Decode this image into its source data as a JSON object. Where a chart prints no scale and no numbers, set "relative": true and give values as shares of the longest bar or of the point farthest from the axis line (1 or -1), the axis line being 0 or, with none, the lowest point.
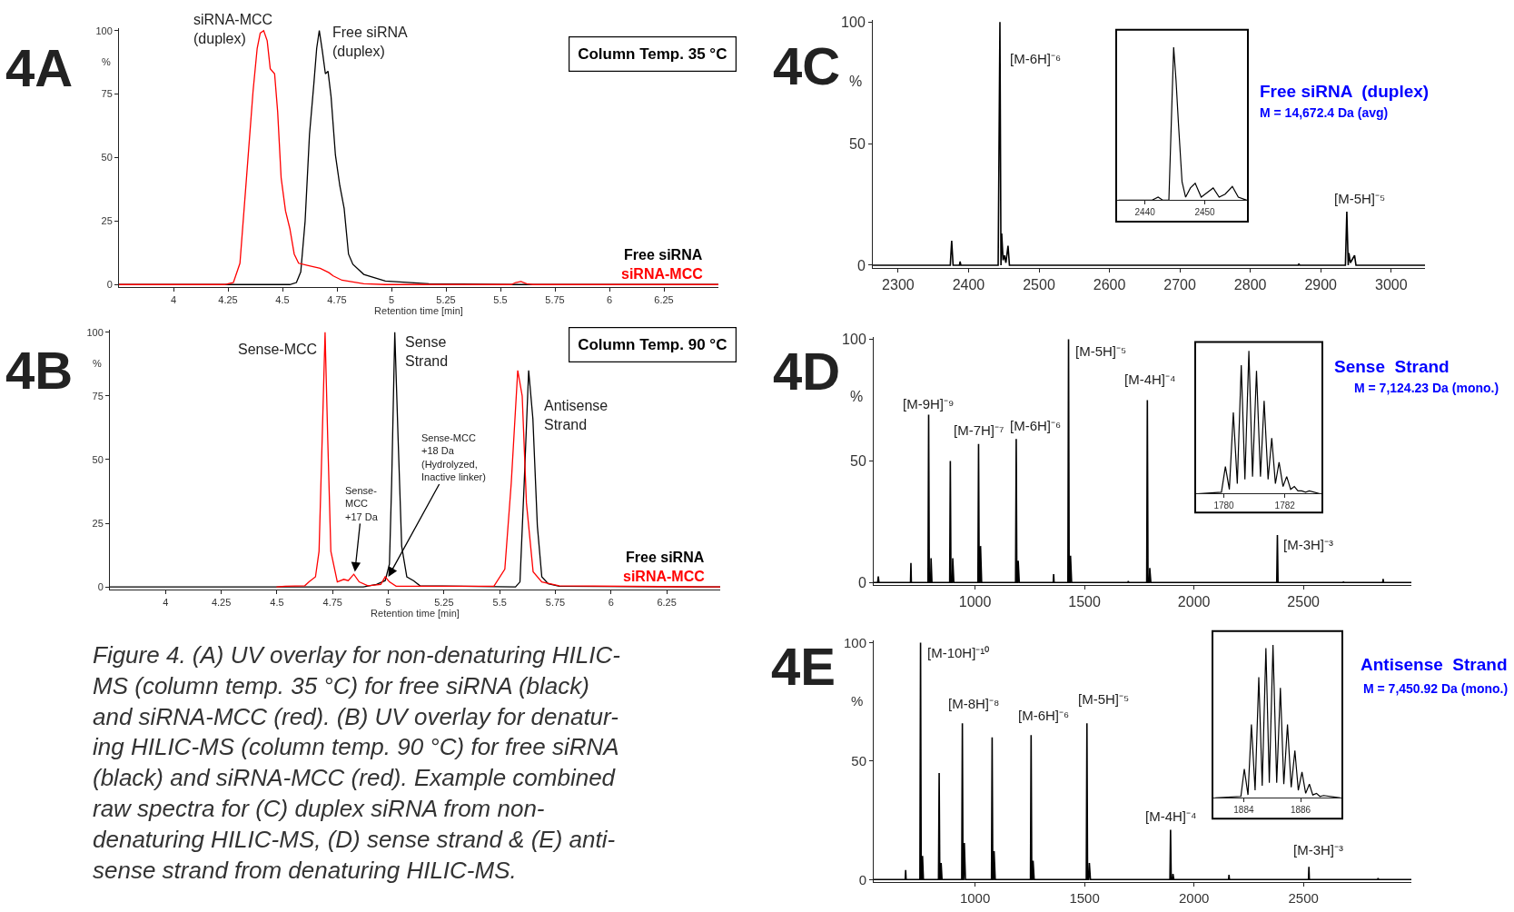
{
  "chart_data": [
    {
      "type": "line",
      "title": "4A",
      "xlabel": "Retention time [min]",
      "ylabel": "%",
      "xlim": [
        3.75,
        6.5
      ],
      "xticks": [
        4,
        4.25,
        4.5,
        4.75,
        5,
        5.25,
        5.5,
        5.75,
        6,
        6.25
      ],
      "ylim": [
        -1,
        101
      ],
      "yticks": [
        0,
        25,
        50,
        75,
        100
      ],
      "legend": "bottom right",
      "series": [
        {
          "name": "Free siRNA",
          "color": "#000000",
          "x": [
            3.75,
            4.534,
            4.564,
            4.584,
            4.604,
            4.624,
            4.644,
            4.657,
            4.669,
            4.683,
            4.697,
            4.709,
            4.723,
            4.743,
            4.763,
            4.783,
            4.803,
            4.823,
            4.873,
            4.972,
            5.171,
            5.55,
            6.5
          ],
          "values": [
            0,
            0,
            0.8,
            5,
            25,
            59,
            79,
            93,
            100,
            92,
            83,
            84,
            74,
            51,
            39,
            30,
            12,
            8,
            4,
            1.4,
            0.3,
            0,
            0
          ]
        },
        {
          "name": "siRNA-MCC",
          "color": "#ff0000",
          "x": [
            3.75,
            4.235,
            4.275,
            4.305,
            4.335,
            4.365,
            4.384,
            4.398,
            4.414,
            4.43,
            4.444,
            4.464,
            4.478,
            4.494,
            4.514,
            4.534,
            4.554,
            4.574,
            4.614,
            4.673,
            4.713,
            4.733,
            4.773,
            4.873,
            4.972,
            5.55,
            5.57,
            5.594,
            5.62,
            5.649,
            6.5
          ],
          "values": [
            0,
            0,
            0.8,
            8.4,
            42,
            76,
            93,
            99,
            100,
            96,
            85,
            83,
            68,
            42,
            29,
            22,
            12,
            8.4,
            7.6,
            6.4,
            4.7,
            3.4,
            1.7,
            0.3,
            0,
            0,
            0.8,
            1.2,
            0.3,
            0,
            0
          ]
        }
      ],
      "annotations": [
        {
          "text": "siRNA-MCC\n(duplex)",
          "x": 4.414,
          "y": 100
        },
        {
          "text": "Free siRNA\n(duplex)",
          "x": 4.669,
          "y": 100
        },
        "Column Temp. 35 °C"
      ]
    },
    {
      "type": "line",
      "title": "4B",
      "xlabel": "Retention time [min]",
      "ylabel": "%",
      "xlim": [
        3.75,
        6.49
      ],
      "xticks": [
        4,
        4.25,
        4.5,
        4.75,
        5,
        5.25,
        5.5,
        5.75,
        6,
        6.25
      ],
      "ylim": [
        -1,
        101
      ],
      "yticks": [
        0,
        25,
        50,
        75,
        100
      ],
      "legend": "bottom right",
      "series": [
        {
          "name": "Free siRNA",
          "color": "#000000",
          "x": [
            3.75,
            4.888,
            4.947,
            4.986,
            5.005,
            5.015,
            5.029,
            5.044,
            5.06,
            5.083,
            5.113,
            5.142,
            5.571,
            5.591,
            5.61,
            5.63,
            5.649,
            5.669,
            5.689,
            5.718,
            5.767,
            6.49
          ],
          "values": [
            0,
            0,
            1,
            2.5,
            9,
            41,
            100,
            58,
            16,
            4,
            2.5,
            0.5,
            0,
            2,
            41,
            85,
            66,
            24,
            4,
            1.3,
            0.3,
            0
          ]
        },
        {
          "name": "siRNA-MCC",
          "color": "#ff0000",
          "x": [
            4.498,
            4.537,
            4.625,
            4.644,
            4.673,
            4.689,
            4.703,
            4.716,
            4.728,
            4.742,
            4.771,
            4.8,
            4.82,
            4.845,
            4.869,
            4.908,
            4.966,
            4.986,
            5.005,
            5.035,
            5.474,
            5.523,
            5.552,
            5.581,
            5.601,
            5.62,
            5.65,
            5.689,
            5.767,
            6.49
          ],
          "values": [
            0,
            0.3,
            0.5,
            2,
            4,
            14,
            58,
            100,
            58,
            14,
            2,
            3,
            2.5,
            5,
            2,
            0.5,
            1,
            4,
            2,
            0.3,
            0.3,
            7,
            41,
            85,
            75,
            33,
            6,
            2,
            0.5,
            0
          ]
        }
      ],
      "annotations": [
        {
          "text": "Sense-MCC",
          "x": 4.716,
          "y": 100
        },
        {
          "text": "Sense\nStrand",
          "x": 5.029,
          "y": 100
        },
        {
          "text": "Antisense\nStrand",
          "x": 5.63,
          "y": 85
        },
        {
          "text": "Sense-\nMCC\n+17 Da",
          "x": 4.85,
          "y": 6
        },
        {
          "text": "Sense-MCC\n+18 Da\n(Hydrolyzed,\nInactive linker)",
          "x": 5.0,
          "y": 4
        },
        "Column Temp. 90 °C",
        "Figure 4. (A) UV overlay for non-denaturing HILIC-\nMS (column temp. 35 °C) for free siRNA (black)\nand siRNA-MCC (red). (B) UV overlay for denatur-\ning HILIC-MS (column temp. 90 °C) for free siRNA\n(black) and siRNA-MCC (red). Example combined\nraw spectra for (C) duplex siRNA from non-\ndenaturing HILIC-MS, (D) sense strand & (E) anti-\nsense strand from denaturing HILIC-MS."
      ]
    },
    {
      "type": "line",
      "title": "4C",
      "ylabel": "%",
      "xlim": [
        2264,
        3048
      ],
      "xticks": [
        2300,
        2400,
        2500,
        2600,
        2700,
        2800,
        2900,
        3000
      ],
      "ylim": [
        -1,
        101
      ],
      "yticks": [
        0,
        50,
        100
      ],
      "series": [
        {
          "color": "#000000",
          "x": [
            2264,
            2374,
            2376,
            2378,
            2387,
            2388,
            2389,
            2442,
            2444.5,
            2446,
            2447,
            2449,
            2451,
            2453,
            2456,
            2458,
            2868,
            2869,
            2870,
            2935,
            2937,
            2939,
            2940,
            2942,
            2948,
            2950,
            3048
          ],
          "values": [
            0,
            0,
            10,
            0,
            0,
            1.5,
            0,
            0,
            100,
            0,
            13,
            2,
            4,
            1,
            8,
            0,
            0,
            0.6,
            0,
            0,
            22,
            0,
            5,
            1,
            4,
            0,
            0
          ]
        }
      ],
      "annotations": [
        {
          "text": "[M-6H]⁻⁶",
          "x": 2444.5,
          "y": 100
        },
        {
          "text": "[M-5H]⁻⁵",
          "x": 2937,
          "y": 22
        },
        "Free siRNA  (duplex)",
        "M = 14,672.4 Da (avg)"
      ]
    },
    {
      "type": "line",
      "relative": true,
      "xlim": [
        2435.2,
        2457.2
      ],
      "xticks": [
        2440,
        2450
      ],
      "series": [
        {
          "color": "#000000",
          "x": [
            2435.6,
            2441.2,
            2442.2,
            2443,
            2444,
            2444.4,
            2444.8,
            2445.2,
            2445.6,
            2446.2,
            2446.8,
            2447.6,
            2448.4,
            2449.4,
            2450.4,
            2451.4,
            2452.4,
            2453.4,
            2454.6,
            2455.6,
            2457
          ],
          "values": [
            0,
            0,
            0.02,
            0,
            0,
            0.5,
            1,
            0.78,
            0.5,
            0.12,
            0.02,
            0.08,
            0.11,
            0.02,
            0.05,
            0.08,
            0.02,
            0.04,
            0.09,
            0.02,
            0
          ]
        }
      ]
    },
    {
      "type": "line",
      "title": "4D",
      "ylabel": "%",
      "xlim": [
        537,
        2993
      ],
      "xticks": [
        1000,
        1500,
        2000,
        2500
      ],
      "ylim": [
        -1,
        101
      ],
      "yticks": [
        0,
        50,
        100
      ],
      "series": [
        {
          "color": "#000000",
          "x": [
            537,
            555,
            558,
            561,
            705,
            707,
            709,
            785,
            788,
            791,
            797,
            799,
            803,
            884,
            887,
            890,
            896,
            898,
            903,
            1013,
            1016,
            1019,
            1023,
            1025,
            1030,
            1185,
            1188,
            1191,
            1195,
            1197,
            1202,
            1357,
            1359,
            1361,
            1424,
            1427,
            1430,
            1434,
            1436,
            1441,
            1698,
            1700,
            1702,
            1784,
            1787,
            1790,
            1796,
            1798,
            1803,
            2378,
            2381,
            2384,
            2681,
            2683,
            2685,
            2862,
            2864,
            2866,
            2993
          ],
          "values": [
            0,
            0,
            2.5,
            0,
            0,
            8,
            0,
            0,
            69,
            0,
            0,
            10,
            0,
            0,
            50,
            0,
            0,
            10,
            0,
            0,
            57,
            0,
            0,
            15,
            0,
            0,
            59,
            0,
            0,
            9,
            0,
            0,
            3.5,
            0,
            0,
            100,
            0,
            0,
            11,
            0,
            0,
            0.6,
            0,
            0,
            75,
            0,
            0,
            6,
            0,
            0,
            19.5,
            0,
            0,
            0.4,
            0,
            0,
            1.5,
            0,
            0
          ]
        }
      ],
      "annotations": [
        {
          "text": "[M-9H]⁻⁹",
          "x": 788,
          "y": 69
        },
        {
          "text": "[M-7H]⁻⁷",
          "x": 1016,
          "y": 57
        },
        {
          "text": "[M-6H]⁻⁶",
          "x": 1188,
          "y": 59
        },
        {
          "text": "[M-5H]⁻⁵",
          "x": 1427,
          "y": 100
        },
        {
          "text": "[M-4H]⁻⁴",
          "x": 1787,
          "y": 75
        },
        {
          "text": "[M-3H]⁻³",
          "x": 2381,
          "y": 19.5
        },
        "Sense  Strand",
        "M = 7,124.23 Da (mono.)"
      ]
    },
    {
      "type": "line",
      "relative": true,
      "xlim": [
        1779.06,
        1783.23
      ],
      "xticks": [
        1780,
        1782
      ],
      "series": [
        {
          "color": "#000000",
          "x": [
            1779.13,
            1779.92,
            1780.05,
            1780.18,
            1780.31,
            1780.44,
            1780.57,
            1780.69,
            1780.82,
            1780.94,
            1781.07,
            1781.2,
            1781.32,
            1781.45,
            1781.57,
            1781.69,
            1781.81,
            1781.94,
            1782.06,
            1782.19,
            1782.31,
            1782.43,
            1782.55,
            1782.68,
            1782.8,
            1783.15
          ],
          "values": [
            0,
            0.01,
            0.19,
            0.03,
            0.57,
            0.07,
            0.9,
            0.1,
            1,
            0.12,
            0.86,
            0.12,
            0.65,
            0.1,
            0.39,
            0.07,
            0.22,
            0.05,
            0.12,
            0.03,
            0.05,
            0.02,
            0.02,
            0.01,
            0.02,
            0
          ]
        }
      ]
    },
    {
      "type": "line",
      "title": "4E",
      "ylabel": "%",
      "xlim": [
        537,
        2993
      ],
      "xticks": [
        1000,
        1500,
        2000,
        2500
      ],
      "ylim": [
        -1,
        101
      ],
      "yticks": [
        0,
        50,
        100
      ],
      "series": [
        {
          "color": "#000000",
          "x": [
            537,
            681,
            683,
            685,
            748,
            751,
            754,
            758,
            760,
            764,
            833,
            836,
            839,
            843,
            845,
            849,
            939,
            942,
            945,
            948,
            951,
            956,
            1075,
            1078,
            1081,
            1085,
            1087,
            1092,
            1253,
            1256,
            1259,
            1263,
            1265,
            1270,
            1508,
            1511,
            1514,
            1519,
            1522,
            1527,
            1890,
            1893,
            1896,
            1902,
            1904,
            1908,
            2158,
            2160,
            2162,
            2523,
            2525,
            2527,
            2839,
            2841,
            2843,
            2993
          ],
          "values": [
            0,
            0,
            4,
            0,
            0,
            100,
            0,
            0,
            10,
            0,
            0,
            45,
            0,
            0,
            7,
            0,
            0,
            66,
            0,
            0,
            15.5,
            0,
            0,
            60,
            0,
            0,
            12,
            0,
            0,
            61,
            0,
            0,
            8,
            0,
            0,
            66,
            0,
            0,
            7,
            0,
            0,
            21,
            0,
            0,
            2.4,
            0,
            0,
            2,
            0,
            0,
            5.4,
            0,
            0,
            0.6,
            0,
            0
          ]
        }
      ],
      "annotations": [
        {
          "text": "[M-10H]⁻¹⁰",
          "x": 751,
          "y": 100
        },
        {
          "text": "[M-8H]⁻⁸",
          "x": 942,
          "y": 66
        },
        {
          "text": "[M-6H]⁻⁶",
          "x": 1256,
          "y": 61
        },
        {
          "text": "[M-5H]⁻⁵",
          "x": 1511,
          "y": 66
        },
        {
          "text": "[M-4H]⁻⁴",
          "x": 1893,
          "y": 21
        },
        {
          "text": "[M-3H]⁻³",
          "x": 2525,
          "y": 5.4
        },
        "Antisense  Strand",
        "M = 7,450.92 Da (mono.)"
      ]
    },
    {
      "type": "line",
      "relative": true,
      "xlim": [
        1882.9,
        1887.47
      ],
      "xticks": [
        1884,
        1886
      ],
      "series": [
        {
          "color": "#000000",
          "x": [
            1883.0,
            1883.9,
            1884.02,
            1884.15,
            1884.27,
            1884.4,
            1884.53,
            1884.65,
            1884.78,
            1884.9,
            1885.03,
            1885.16,
            1885.29,
            1885.41,
            1885.54,
            1885.67,
            1885.8,
            1885.92,
            1886.05,
            1886.18,
            1886.31,
            1886.43,
            1886.56,
            1886.68,
            1886.81,
            1887.4
          ],
          "values": [
            0,
            0.01,
            0.19,
            0.02,
            0.48,
            0.05,
            0.79,
            0.08,
            0.98,
            0.1,
            1,
            0.1,
            0.72,
            0.09,
            0.48,
            0.07,
            0.31,
            0.05,
            0.17,
            0.03,
            0.09,
            0.02,
            0.03,
            0.01,
            0.016,
            0
          ]
        }
      ]
    }
  ]
}
